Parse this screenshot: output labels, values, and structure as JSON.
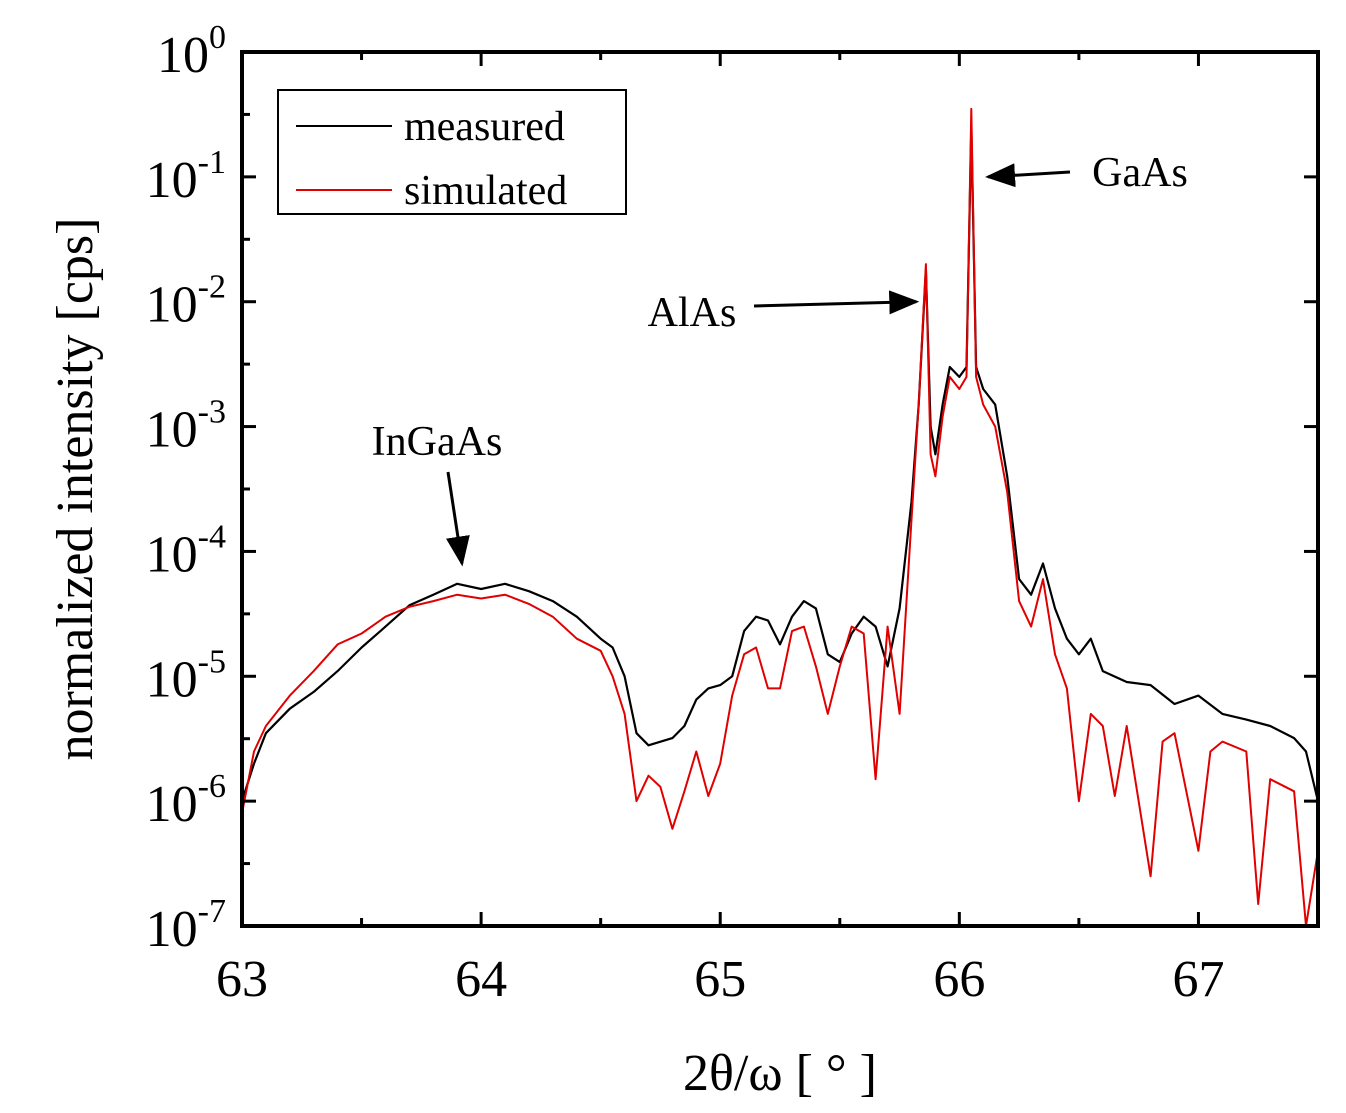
{
  "chart_data": {
    "type": "line",
    "title": "",
    "xlabel": "2θ/ω [ ° ]",
    "ylabel": "normalized intensity [cps]",
    "xlim": [
      63,
      67.5
    ],
    "ylim_exponent": [
      -7,
      0
    ],
    "yscale": "log",
    "x_ticks": [
      "63",
      "64",
      "65",
      "66",
      "67"
    ],
    "x_tick_values": [
      63,
      64,
      65,
      66,
      67
    ],
    "y_ticks": [
      {
        "base": "10",
        "exp": "0",
        "value": 1
      },
      {
        "base": "10",
        "exp": "-1",
        "value": 0.1
      },
      {
        "base": "10",
        "exp": "-2",
        "value": 0.01
      },
      {
        "base": "10",
        "exp": "-3",
        "value": 0.001
      },
      {
        "base": "10",
        "exp": "-4",
        "value": 0.0001
      },
      {
        "base": "10",
        "exp": "-5",
        "value": 1e-05
      },
      {
        "base": "10",
        "exp": "-6",
        "value": 1e-06
      },
      {
        "base": "10",
        "exp": "-7",
        "value": 1e-07
      }
    ],
    "grid": false,
    "legend_position": "top-left",
    "series": [
      {
        "name": "measured",
        "color": "#000000",
        "points": [
          [
            63.0,
            1e-06
          ],
          [
            63.05,
            2e-06
          ],
          [
            63.1,
            3.5e-06
          ],
          [
            63.2,
            5.5e-06
          ],
          [
            63.3,
            7.5e-06
          ],
          [
            63.4,
            1.1e-05
          ],
          [
            63.5,
            1.7e-05
          ],
          [
            63.6,
            2.5e-05
          ],
          [
            63.7,
            3.7e-05
          ],
          [
            63.8,
            4.5e-05
          ],
          [
            63.9,
            5.5e-05
          ],
          [
            64.0,
            5e-05
          ],
          [
            64.1,
            5.5e-05
          ],
          [
            64.2,
            4.8e-05
          ],
          [
            64.3,
            4e-05
          ],
          [
            64.4,
            3e-05
          ],
          [
            64.5,
            2e-05
          ],
          [
            64.55,
            1.7e-05
          ],
          [
            64.6,
            1e-05
          ],
          [
            64.65,
            3.5e-06
          ],
          [
            64.7,
            2.8e-06
          ],
          [
            64.8,
            3.2e-06
          ],
          [
            64.85,
            4e-06
          ],
          [
            64.9,
            6.5e-06
          ],
          [
            64.95,
            8e-06
          ],
          [
            65.0,
            8.5e-06
          ],
          [
            65.05,
            1e-05
          ],
          [
            65.1,
            2.3e-05
          ],
          [
            65.15,
            3e-05
          ],
          [
            65.2,
            2.8e-05
          ],
          [
            65.25,
            1.8e-05
          ],
          [
            65.3,
            3e-05
          ],
          [
            65.35,
            4e-05
          ],
          [
            65.4,
            3.5e-05
          ],
          [
            65.45,
            1.5e-05
          ],
          [
            65.5,
            1.3e-05
          ],
          [
            65.55,
            2.2e-05
          ],
          [
            65.6,
            3e-05
          ],
          [
            65.65,
            2.5e-05
          ],
          [
            65.7,
            1.2e-05
          ],
          [
            65.75,
            3.5e-05
          ],
          [
            65.8,
            0.00025
          ],
          [
            65.83,
            0.0015
          ],
          [
            65.86,
            0.018
          ],
          [
            65.88,
            0.001
          ],
          [
            65.9,
            0.0006
          ],
          [
            65.93,
            0.0015
          ],
          [
            65.96,
            0.003
          ],
          [
            66.0,
            0.0025
          ],
          [
            66.03,
            0.003
          ],
          [
            66.05,
            0.25
          ],
          [
            66.07,
            0.003
          ],
          [
            66.1,
            0.002
          ],
          [
            66.15,
            0.0015
          ],
          [
            66.2,
            0.0004
          ],
          [
            66.25,
            6e-05
          ],
          [
            66.3,
            4.5e-05
          ],
          [
            66.35,
            8e-05
          ],
          [
            66.4,
            3.5e-05
          ],
          [
            66.45,
            2e-05
          ],
          [
            66.5,
            1.5e-05
          ],
          [
            66.55,
            2e-05
          ],
          [
            66.6,
            1.1e-05
          ],
          [
            66.7,
            9e-06
          ],
          [
            66.8,
            8.5e-06
          ],
          [
            66.9,
            6e-06
          ],
          [
            67.0,
            7e-06
          ],
          [
            67.1,
            5e-06
          ],
          [
            67.2,
            4.5e-06
          ],
          [
            67.3,
            4e-06
          ],
          [
            67.4,
            3.2e-06
          ],
          [
            67.45,
            2.5e-06
          ],
          [
            67.5,
            1e-06
          ]
        ]
      },
      {
        "name": "simulated",
        "color": "#e00000",
        "points": [
          [
            63.0,
            8e-07
          ],
          [
            63.05,
            2.5e-06
          ],
          [
            63.1,
            4e-06
          ],
          [
            63.2,
            7e-06
          ],
          [
            63.3,
            1.1e-05
          ],
          [
            63.4,
            1.8e-05
          ],
          [
            63.5,
            2.2e-05
          ],
          [
            63.6,
            3e-05
          ],
          [
            63.7,
            3.6e-05
          ],
          [
            63.8,
            4e-05
          ],
          [
            63.9,
            4.5e-05
          ],
          [
            64.0,
            4.2e-05
          ],
          [
            64.1,
            4.5e-05
          ],
          [
            64.2,
            3.8e-05
          ],
          [
            64.3,
            3e-05
          ],
          [
            64.4,
            2e-05
          ],
          [
            64.5,
            1.6e-05
          ],
          [
            64.55,
            1e-05
          ],
          [
            64.6,
            5e-06
          ],
          [
            64.65,
            1e-06
          ],
          [
            64.7,
            1.6e-06
          ],
          [
            64.75,
            1.3e-06
          ],
          [
            64.8,
            6e-07
          ],
          [
            64.85,
            1.2e-06
          ],
          [
            64.9,
            2.5e-06
          ],
          [
            64.95,
            1.1e-06
          ],
          [
            65.0,
            2e-06
          ],
          [
            65.05,
            7e-06
          ],
          [
            65.1,
            1.5e-05
          ],
          [
            65.15,
            1.7e-05
          ],
          [
            65.2,
            8e-06
          ],
          [
            65.25,
            8e-06
          ],
          [
            65.3,
            2.3e-05
          ],
          [
            65.35,
            2.5e-05
          ],
          [
            65.4,
            1.2e-05
          ],
          [
            65.45,
            5e-06
          ],
          [
            65.5,
            1.2e-05
          ],
          [
            65.55,
            2.5e-05
          ],
          [
            65.6,
            2.2e-05
          ],
          [
            65.65,
            1.5e-06
          ],
          [
            65.7,
            2.5e-05
          ],
          [
            65.75,
            5e-06
          ],
          [
            65.8,
            0.00018
          ],
          [
            65.83,
            0.0015
          ],
          [
            65.86,
            0.02
          ],
          [
            65.88,
            0.0006
          ],
          [
            65.9,
            0.0004
          ],
          [
            65.93,
            0.0012
          ],
          [
            65.96,
            0.0025
          ],
          [
            66.0,
            0.002
          ],
          [
            66.03,
            0.0025
          ],
          [
            66.05,
            0.35
          ],
          [
            66.07,
            0.0025
          ],
          [
            66.1,
            0.0015
          ],
          [
            66.15,
            0.001
          ],
          [
            66.2,
            0.0003
          ],
          [
            66.25,
            4e-05
          ],
          [
            66.3,
            2.5e-05
          ],
          [
            66.35,
            6e-05
          ],
          [
            66.4,
            1.5e-05
          ],
          [
            66.45,
            8e-06
          ],
          [
            66.5,
            1e-06
          ],
          [
            66.55,
            5e-06
          ],
          [
            66.6,
            4e-06
          ],
          [
            66.65,
            1.1e-06
          ],
          [
            66.7,
            4e-06
          ],
          [
            66.8,
            2.5e-07
          ],
          [
            66.85,
            3e-06
          ],
          [
            66.9,
            3.5e-06
          ],
          [
            67.0,
            4e-07
          ],
          [
            67.05,
            2.5e-06
          ],
          [
            67.1,
            3e-06
          ],
          [
            67.2,
            2.5e-06
          ],
          [
            67.25,
            1.5e-07
          ],
          [
            67.3,
            1.5e-06
          ],
          [
            67.4,
            1.2e-06
          ],
          [
            67.45,
            1e-07
          ],
          [
            67.5,
            4e-07
          ]
        ]
      }
    ],
    "annotations": [
      {
        "text": "InGaAs",
        "arrow_to": [
          63.92,
          8e-05
        ]
      },
      {
        "text": "AlAs",
        "arrow_to": [
          65.82,
          0.01
        ]
      },
      {
        "text": "GaAs",
        "arrow_to": [
          66.12,
          0.1
        ]
      }
    ]
  }
}
